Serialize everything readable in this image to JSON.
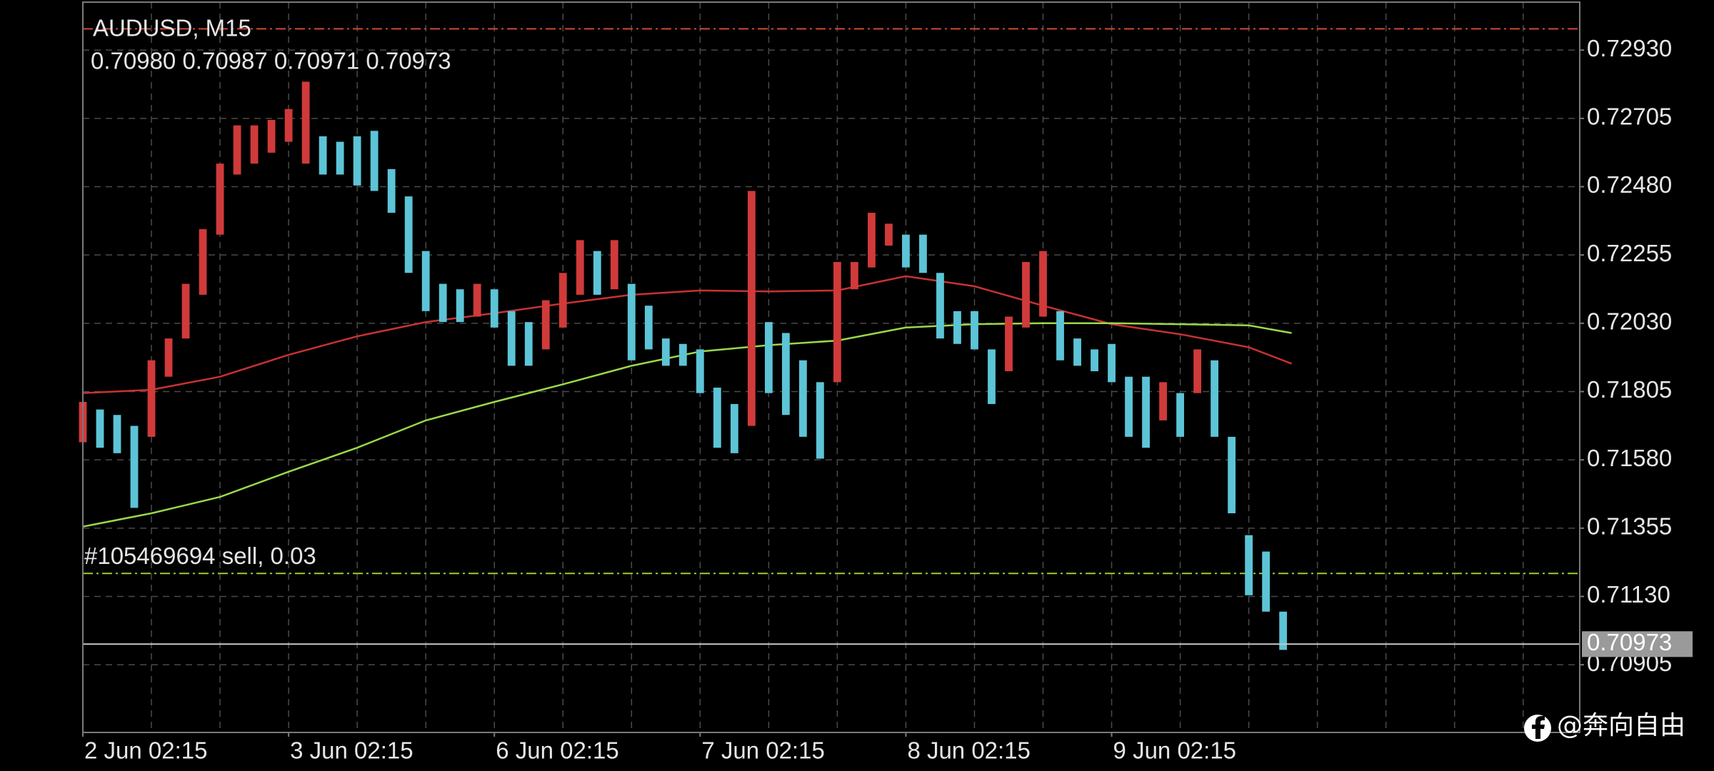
{
  "chart_data": {
    "type": "hilo",
    "title": "AUDUSD, M15",
    "subtitle": "0.70980 0.70987 0.70971 0.70973",
    "x": [
      0,
      2,
      4,
      6,
      8,
      10,
      12,
      14,
      16,
      18,
      20,
      22,
      24,
      26,
      28,
      30,
      32,
      34,
      36,
      38,
      40,
      42,
      44,
      46,
      48,
      50,
      52,
      54,
      56,
      58,
      60,
      62,
      64,
      66,
      68,
      70,
      72,
      74,
      76,
      78,
      80,
      82,
      84,
      86,
      88,
      90,
      92,
      94,
      96,
      98,
      100,
      102,
      104,
      106,
      108,
      110,
      112,
      114,
      116,
      118,
      120,
      122,
      124,
      126,
      128,
      130,
      132,
      134,
      136,
      138,
      140
    ],
    "high": [
      0.71771,
      0.71746,
      0.71728,
      0.71692,
      0.71908,
      0.7198,
      0.7216,
      0.7234,
      0.72556,
      0.72682,
      0.72682,
      0.727,
      0.72736,
      0.72826,
      0.72646,
      0.72628,
      0.72646,
      0.72664,
      0.72538,
      0.72448,
      0.72268,
      0.7216,
      0.72142,
      0.7216,
      0.72142,
      0.7207,
      0.72034,
      0.72106,
      0.72196,
      0.72304,
      0.72268,
      0.72304,
      0.7216,
      0.72088,
      0.7198,
      0.71962,
      0.71944,
      0.71818,
      0.71764,
      0.72466,
      0.72034,
      0.71998,
      0.71908,
      0.71836,
      0.72232,
      0.72232,
      0.72394,
      0.72358,
      0.72322,
      0.72322,
      0.72196,
      0.7207,
      0.7207,
      0.71944,
      0.72052,
      0.72232,
      0.72268,
      0.7207,
      0.7198,
      0.71944,
      0.71962,
      0.71854,
      0.71854,
      0.71836,
      0.718,
      0.71944,
      0.71908,
      0.71656,
      0.71332,
      0.71278,
      0.7108
    ],
    "low": [
      0.71638,
      0.7162,
      0.71602,
      0.71422,
      0.71656,
      0.71854,
      0.7198,
      0.72124,
      0.72322,
      0.7252,
      0.72556,
      0.72592,
      0.72628,
      0.72556,
      0.7252,
      0.7252,
      0.72484,
      0.72466,
      0.72394,
      0.72196,
      0.7207,
      0.72034,
      0.72034,
      0.72052,
      0.72016,
      0.7189,
      0.7189,
      0.71944,
      0.72016,
      0.72124,
      0.72124,
      0.72142,
      0.71908,
      0.71944,
      0.7189,
      0.7189,
      0.718,
      0.7162,
      0.71602,
      0.71692,
      0.718,
      0.71728,
      0.71656,
      0.71584,
      0.71836,
      0.72142,
      0.72214,
      0.72286,
      0.72214,
      0.72196,
      0.7198,
      0.71962,
      0.71944,
      0.71764,
      0.71872,
      0.72016,
      0.72052,
      0.71908,
      0.7189,
      0.71872,
      0.71836,
      0.71656,
      0.7162,
      0.7171,
      0.71656,
      0.718,
      0.71656,
      0.71404,
      0.71134,
      0.7108,
      0.70954
    ],
    "up_color": "#d03a3a",
    "down_color": "#5cc4d6",
    "lines": [
      {
        "color": "#c83232",
        "x": [
          0,
          8,
          16,
          24,
          32,
          40,
          48,
          56,
          64,
          72,
          80,
          88,
          96,
          104,
          112,
          120,
          128,
          136,
          141
        ],
        "values": [
          0.718,
          0.71811,
          0.71854,
          0.71926,
          0.71987,
          0.72034,
          0.72063,
          0.72095,
          0.72124,
          0.72138,
          0.72135,
          0.72138,
          0.72185,
          0.72152,
          0.72088,
          0.72027,
          0.71994,
          0.71951,
          0.71897
        ]
      },
      {
        "color": "#9ad84a",
        "x": [
          0,
          8,
          16,
          24,
          32,
          40,
          48,
          56,
          64,
          72,
          80,
          88,
          96,
          104,
          112,
          120,
          128,
          136,
          141
        ],
        "values": [
          0.7136,
          0.71404,
          0.71458,
          0.71541,
          0.7162,
          0.7171,
          0.71771,
          0.71829,
          0.7189,
          0.71937,
          0.71958,
          0.71973,
          0.72016,
          0.72027,
          0.7203,
          0.7203,
          0.72027,
          0.72023,
          0.71998
        ]
      }
    ],
    "levels": [
      {
        "value": 0.73,
        "color": "#d04a30"
      },
      {
        "value": 0.71206,
        "color": "#9acd32",
        "label": "#105469694 sell, 0.03"
      }
    ],
    "current_price": {
      "value": 0.70973,
      "color": "#c8c8c8"
    },
    "xlim": [
      0,
      174.6
    ],
    "ylim": [
      0.70682,
      0.73088
    ],
    "xticks": [
      {
        "value": 0,
        "label": "2 Jun 02:15"
      },
      {
        "value": 24,
        "label": "3 Jun 02:15"
      },
      {
        "value": 48,
        "label": "6 Jun 02:15"
      },
      {
        "value": 72,
        "label": "7 Jun 02:15"
      },
      {
        "value": 96,
        "label": "8 Jun 02:15"
      },
      {
        "value": 120,
        "label": "9 Jun 02:15"
      }
    ],
    "xgrid": [
      8,
      16,
      24,
      32,
      40,
      48,
      56,
      64,
      72,
      80,
      88,
      96,
      104,
      112,
      120,
      128,
      136,
      144,
      152,
      160,
      168
    ],
    "yticks": [
      {
        "value": 0.7293,
        "label": "0.72930"
      },
      {
        "value": 0.72705,
        "label": "0.72705"
      },
      {
        "value": 0.7248,
        "label": "0.72480"
      },
      {
        "value": 0.72255,
        "label": "0.72255"
      },
      {
        "value": 0.7203,
        "label": "0.72030"
      },
      {
        "value": 0.71805,
        "label": "0.71805"
      },
      {
        "value": 0.7158,
        "label": "0.71580"
      },
      {
        "value": 0.71355,
        "label": "0.71355"
      },
      {
        "value": 0.7113,
        "label": "0.71130"
      },
      {
        "value": 0.70905,
        "label": "0.70905"
      }
    ],
    "grid": true,
    "watermark": "@奔向自由"
  }
}
